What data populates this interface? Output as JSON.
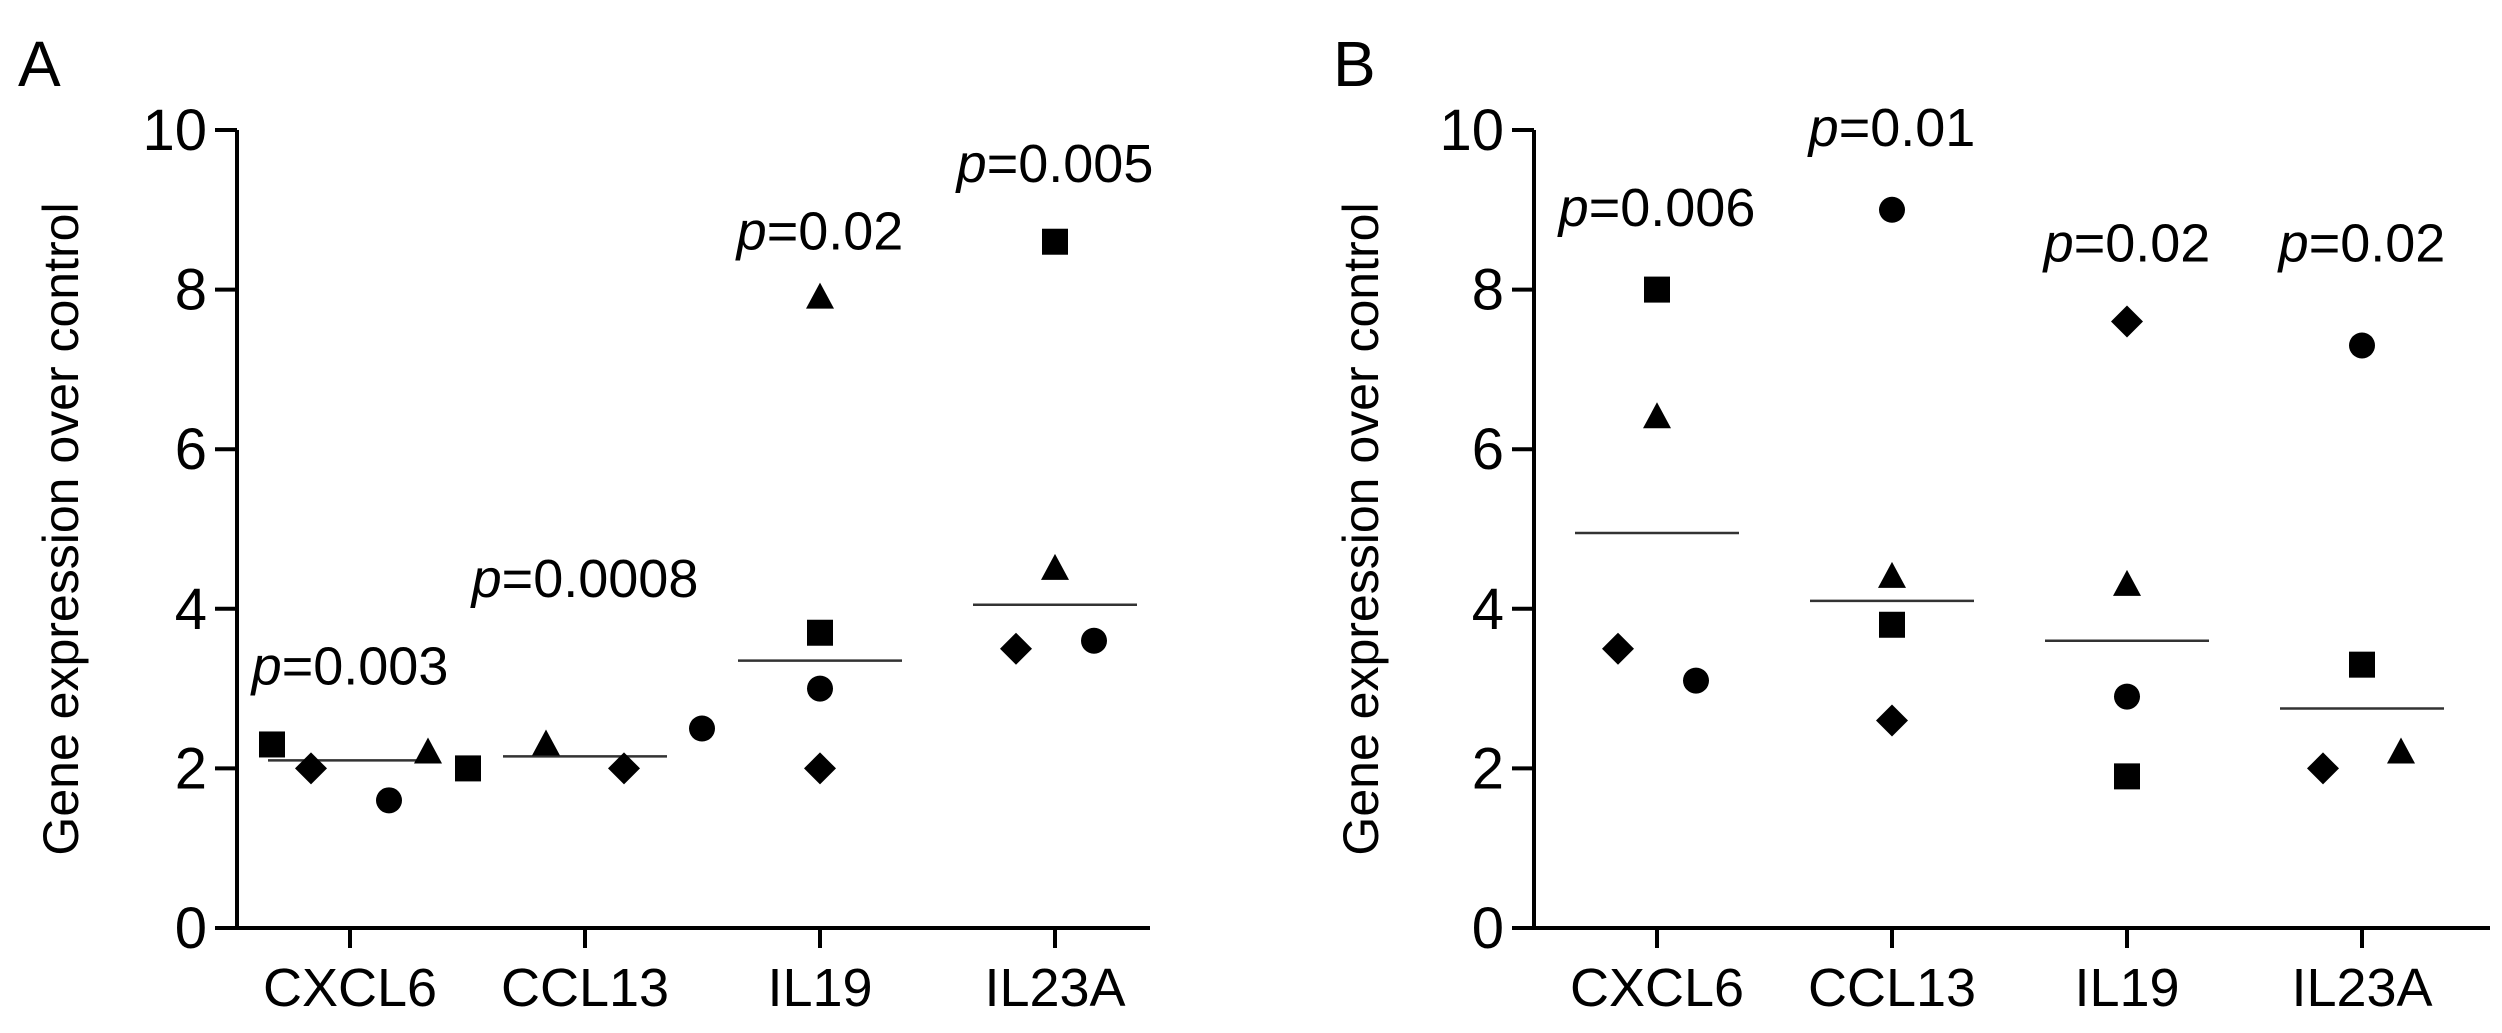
{
  "chart_data": [
    {
      "type": "scatter",
      "panel": "A",
      "ylabel": "Gene expression over control",
      "xlabel": "",
      "ylim": [
        0,
        10
      ],
      "yticks": [
        0,
        2,
        4,
        6,
        8,
        10
      ],
      "categories": [
        "CXCL6",
        "CCL13",
        "IL19",
        "IL23A"
      ],
      "p_prefix": "p",
      "p_values": [
        "=0.003",
        "=0.0008",
        "=0.02",
        "=0.005"
      ],
      "means": [
        2.1,
        2.15,
        3.35,
        4.05
      ],
      "points": [
        {
          "category": "CXCL6",
          "marker": "square",
          "value": 2.3
        },
        {
          "category": "CXCL6",
          "marker": "diamond",
          "value": 2.0
        },
        {
          "category": "CXCL6",
          "marker": "circle",
          "value": 1.6
        },
        {
          "category": "CXCL6",
          "marker": "triangle",
          "value": 2.2
        },
        {
          "category": "CCL13",
          "marker": "square",
          "value": 2.0
        },
        {
          "category": "CCL13",
          "marker": "triangle",
          "value": 2.3
        },
        {
          "category": "CCL13",
          "marker": "diamond",
          "value": 2.0
        },
        {
          "category": "CCL13",
          "marker": "circle",
          "value": 2.5
        },
        {
          "category": "IL19",
          "marker": "triangle",
          "value": 7.9
        },
        {
          "category": "IL19",
          "marker": "square",
          "value": 3.7
        },
        {
          "category": "IL19",
          "marker": "circle",
          "value": 3.0
        },
        {
          "category": "IL19",
          "marker": "diamond",
          "value": 2.0
        },
        {
          "category": "IL23A",
          "marker": "square",
          "value": 8.6
        },
        {
          "category": "IL23A",
          "marker": "triangle",
          "value": 4.5
        },
        {
          "category": "IL23A",
          "marker": "diamond",
          "value": 3.5
        },
        {
          "category": "IL23A",
          "marker": "circle",
          "value": 3.6
        }
      ]
    },
    {
      "type": "scatter",
      "panel": "B",
      "ylabel": "Gene expression over control",
      "xlabel": "",
      "ylim": [
        0,
        10
      ],
      "yticks": [
        0,
        2,
        4,
        6,
        8,
        10
      ],
      "categories": [
        "CXCL6",
        "CCL13",
        "IL19",
        "IL23A"
      ],
      "p_prefix": "p",
      "p_values": [
        "=0.006",
        "=0.01",
        "=0.02",
        "=0.02"
      ],
      "means": [
        4.95,
        4.1,
        3.6,
        2.75
      ],
      "points": [
        {
          "category": "CXCL6",
          "marker": "square",
          "value": 8.0
        },
        {
          "category": "CXCL6",
          "marker": "triangle",
          "value": 6.4
        },
        {
          "category": "CXCL6",
          "marker": "diamond",
          "value": 3.5
        },
        {
          "category": "CXCL6",
          "marker": "circle",
          "value": 3.1
        },
        {
          "category": "CCL13",
          "marker": "circle",
          "value": 9.0
        },
        {
          "category": "CCL13",
          "marker": "triangle",
          "value": 4.4
        },
        {
          "category": "CCL13",
          "marker": "square",
          "value": 3.8
        },
        {
          "category": "CCL13",
          "marker": "diamond",
          "value": 2.6
        },
        {
          "category": "IL19",
          "marker": "diamond",
          "value": 7.6
        },
        {
          "category": "IL19",
          "marker": "triangle",
          "value": 4.3
        },
        {
          "category": "IL19",
          "marker": "circle",
          "value": 2.9
        },
        {
          "category": "IL19",
          "marker": "square",
          "value": 1.9
        },
        {
          "category": "IL23A",
          "marker": "circle",
          "value": 7.3
        },
        {
          "category": "IL23A",
          "marker": "square",
          "value": 3.3
        },
        {
          "category": "IL23A",
          "marker": "diamond",
          "value": 2.0
        },
        {
          "category": "IL23A",
          "marker": "triangle",
          "value": 2.2
        }
      ]
    }
  ]
}
